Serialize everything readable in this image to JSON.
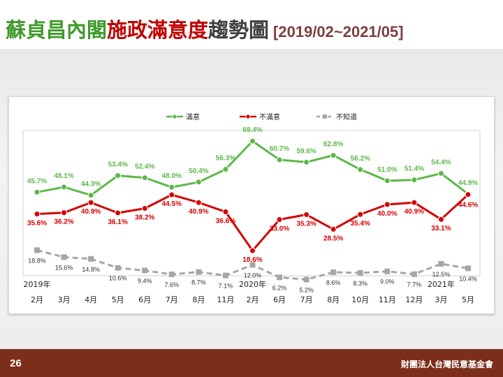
{
  "title": {
    "part1": "蘇貞昌內閣",
    "part2": "施政滿意度",
    "part3": "趨勢圖",
    "range": "[2019/02~2021/05]"
  },
  "footer": {
    "page": "26",
    "org": "財團法人台灣民意基金會"
  },
  "colors": {
    "satisfied": "#5cb848",
    "dissatisfied": "#d40000",
    "unknown": "#a6a6a6",
    "footer": "#7b2f1a"
  },
  "chart_data": {
    "type": "line",
    "categories": [
      "2月",
      "3月",
      "4月",
      "5月",
      "6月",
      "7月",
      "8月",
      "11月",
      "2月",
      "6月",
      "7月",
      "8月",
      "10月",
      "11月",
      "12月",
      "3月",
      "5月"
    ],
    "year_labels": [
      {
        "label": "2019年",
        "index": 0
      },
      {
        "label": "2020年",
        "index": 8
      },
      {
        "label": "2021年",
        "index": 15
      }
    ],
    "series": [
      {
        "name": "滿意",
        "color": "#5cb848",
        "dash": false,
        "marker": "circle",
        "values": [
          45.7,
          48.1,
          44.3,
          53.4,
          52.4,
          48.0,
          50.4,
          56.3,
          69.4,
          60.7,
          59.6,
          62.8,
          56.2,
          51.0,
          51.4,
          54.4,
          44.9
        ]
      },
      {
        "name": "不滿意",
        "color": "#d40000",
        "dash": false,
        "marker": "circle",
        "values": [
          35.6,
          36.2,
          40.9,
          36.1,
          38.2,
          44.5,
          40.9,
          36.6,
          18.6,
          33.0,
          35.3,
          28.5,
          35.4,
          40.0,
          40.9,
          33.1,
          44.6
        ]
      },
      {
        "name": "不知道",
        "color": "#a6a6a6",
        "dash": true,
        "marker": "square",
        "values": [
          18.8,
          15.6,
          14.8,
          10.6,
          9.4,
          7.6,
          8.7,
          7.1,
          12.0,
          6.2,
          5.2,
          8.6,
          8.3,
          9.0,
          7.7,
          12.5,
          10.4
        ]
      }
    ],
    "ylim": [
      0,
      75
    ],
    "legend": "top-center",
    "grid": false
  }
}
